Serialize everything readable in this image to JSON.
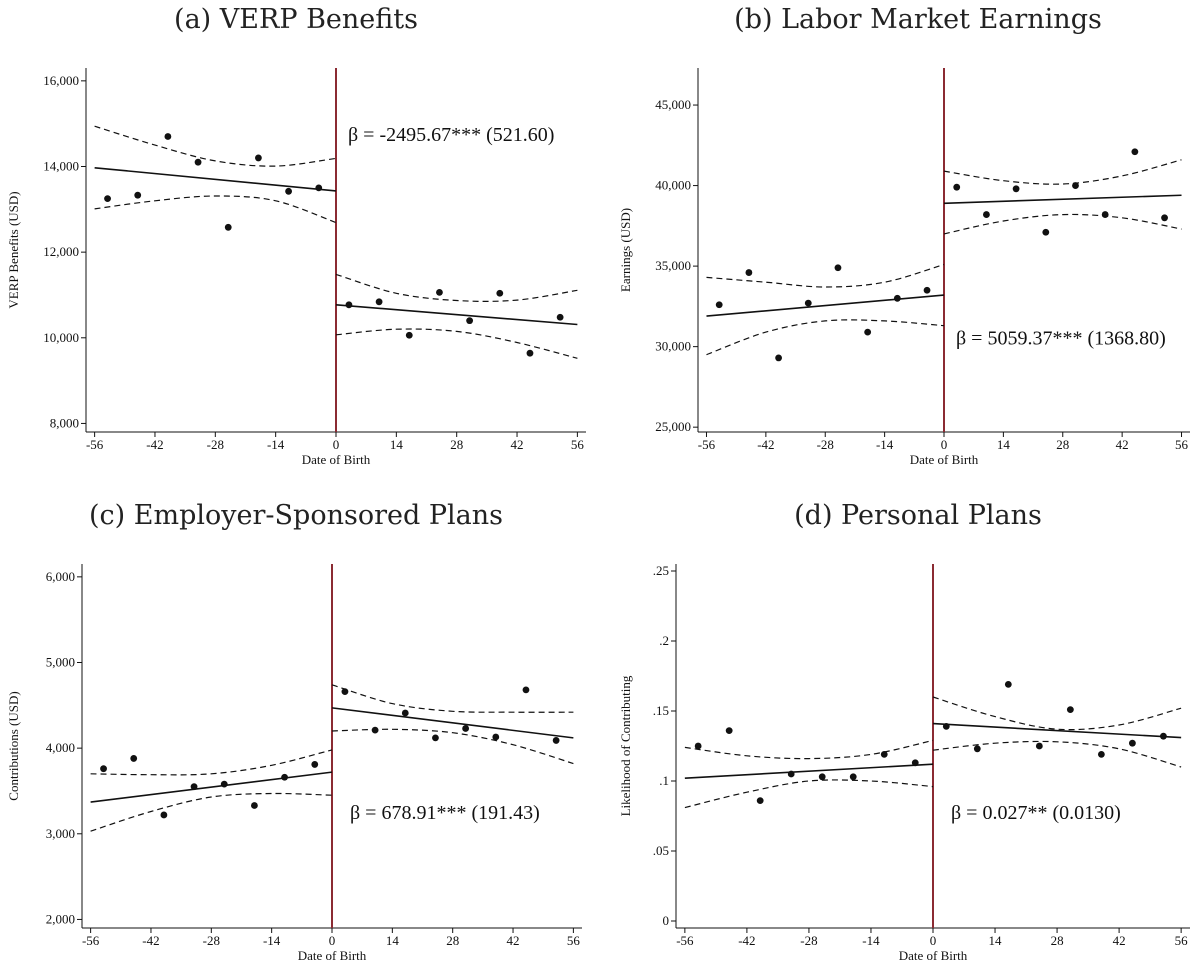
{
  "chart_data": [
    {
      "type": "scatter",
      "title": "(a) VERP Benefits",
      "xlabel": "Date of Birth",
      "ylabel": "VERP Benefits (USD)",
      "xlim": [
        -58,
        58
      ],
      "ylim": [
        7800,
        16300
      ],
      "xticks": [
        -56,
        -42,
        -28,
        -14,
        0,
        14,
        28,
        42,
        56
      ],
      "yticks": [
        8000,
        10000,
        12000,
        14000,
        16000
      ],
      "ytick_labels": [
        "8,000",
        "10,000",
        "12,000",
        "14,000",
        "16,000"
      ],
      "cutoff": 0,
      "annotation": "β = -2495.67*** (521.60)",
      "annotation_pos": "top-right",
      "points": [
        {
          "x": -53,
          "y": 13250
        },
        {
          "x": -46,
          "y": 13330
        },
        {
          "x": -39,
          "y": 14700
        },
        {
          "x": -32,
          "y": 14100
        },
        {
          "x": -25,
          "y": 12580
        },
        {
          "x": -18,
          "y": 14200
        },
        {
          "x": -11,
          "y": 13420
        },
        {
          "x": -4,
          "y": 13500
        },
        {
          "x": 3,
          "y": 10770
        },
        {
          "x": 10,
          "y": 10840
        },
        {
          "x": 17,
          "y": 10060
        },
        {
          "x": 24,
          "y": 11060
        },
        {
          "x": 31,
          "y": 10400
        },
        {
          "x": 38,
          "y": 11040
        },
        {
          "x": 45,
          "y": 9640
        },
        {
          "x": 52,
          "y": 10480
        }
      ],
      "fit_left": {
        "x": [
          -56,
          0
        ],
        "y": [
          13970,
          13430
        ]
      },
      "fit_right": {
        "x": [
          0,
          56
        ],
        "y": [
          10770,
          10310
        ]
      },
      "ci_left": {
        "x": [
          -56,
          -42,
          -28,
          -14,
          0
        ],
        "upper": [
          14940,
          14500,
          14130,
          14010,
          14190
        ],
        "lower": [
          13010,
          13200,
          13310,
          13200,
          12690
        ]
      },
      "ci_right": {
        "x": [
          0,
          14,
          28,
          42,
          56
        ],
        "upper": [
          11480,
          11040,
          10870,
          10880,
          11110
        ],
        "lower": [
          10070,
          10200,
          10150,
          9890,
          9520
        ]
      }
    },
    {
      "type": "scatter",
      "title": "(b) Labor Market Earnings",
      "xlabel": "Date of Birth",
      "ylabel": "Earnings (USD)",
      "xlim": [
        -58,
        58
      ],
      "ylim": [
        24700,
        47300
      ],
      "xticks": [
        -56,
        -42,
        -28,
        -14,
        0,
        14,
        28,
        42,
        56
      ],
      "yticks": [
        25000,
        30000,
        35000,
        40000,
        45000
      ],
      "ytick_labels": [
        "25,000",
        "30,000",
        "35,000",
        "40,000",
        "45,000"
      ],
      "cutoff": 0,
      "annotation": "β = 5059.37*** (1368.80)",
      "annotation_pos": "bottom-right",
      "points": [
        {
          "x": -53,
          "y": 32600
        },
        {
          "x": -46,
          "y": 34600
        },
        {
          "x": -39,
          "y": 29300
        },
        {
          "x": -32,
          "y": 32700
        },
        {
          "x": -25,
          "y": 34900
        },
        {
          "x": -18,
          "y": 30900
        },
        {
          "x": -11,
          "y": 33000
        },
        {
          "x": -4,
          "y": 33500
        },
        {
          "x": 3,
          "y": 39900
        },
        {
          "x": 10,
          "y": 38200
        },
        {
          "x": 17,
          "y": 39800
        },
        {
          "x": 24,
          "y": 37100
        },
        {
          "x": 31,
          "y": 40000
        },
        {
          "x": 38,
          "y": 38200
        },
        {
          "x": 45,
          "y": 42100
        },
        {
          "x": 52,
          "y": 38000
        }
      ],
      "fit_left": {
        "x": [
          -56,
          0
        ],
        "y": [
          31900,
          33200
        ]
      },
      "fit_right": {
        "x": [
          0,
          56
        ],
        "y": [
          38900,
          39400
        ]
      },
      "ci_left": {
        "x": [
          -56,
          -42,
          -28,
          -14,
          0
        ],
        "upper": [
          34300,
          34000,
          33700,
          34000,
          35100
        ],
        "lower": [
          29500,
          30900,
          31600,
          31600,
          31300
        ]
      },
      "ci_right": {
        "x": [
          0,
          14,
          28,
          42,
          56
        ],
        "upper": [
          40900,
          40300,
          40100,
          40600,
          41600
        ],
        "lower": [
          37000,
          37800,
          38200,
          38000,
          37300
        ]
      }
    },
    {
      "type": "scatter",
      "title": "(c) Employer-Sponsored Plans",
      "xlabel": "Date of Birth",
      "ylabel": "Contributions (USD)",
      "xlim": [
        -58,
        58
      ],
      "ylim": [
        1900,
        6150
      ],
      "xticks": [
        -56,
        -42,
        -28,
        -14,
        0,
        14,
        28,
        42,
        56
      ],
      "yticks": [
        2000,
        3000,
        4000,
        5000,
        6000
      ],
      "ytick_labels": [
        "2,000",
        "3,000",
        "4,000",
        "5,000",
        "6,000"
      ],
      "cutoff": 0,
      "annotation": "β = 678.91*** (191.43)",
      "annotation_pos": "middle-right",
      "points": [
        {
          "x": -53,
          "y": 3760
        },
        {
          "x": -46,
          "y": 3880
        },
        {
          "x": -39,
          "y": 3220
        },
        {
          "x": -32,
          "y": 3550
        },
        {
          "x": -25,
          "y": 3580
        },
        {
          "x": -18,
          "y": 3330
        },
        {
          "x": -11,
          "y": 3660
        },
        {
          "x": -4,
          "y": 3810
        },
        {
          "x": 3,
          "y": 4660
        },
        {
          "x": 10,
          "y": 4210
        },
        {
          "x": 17,
          "y": 4410
        },
        {
          "x": 24,
          "y": 4120
        },
        {
          "x": 31,
          "y": 4230
        },
        {
          "x": 38,
          "y": 4130
        },
        {
          "x": 45,
          "y": 4680
        },
        {
          "x": 52,
          "y": 4090
        }
      ],
      "fit_left": {
        "x": [
          -56,
          0
        ],
        "y": [
          3370,
          3720
        ]
      },
      "fit_right": {
        "x": [
          0,
          56
        ],
        "y": [
          4470,
          4120
        ]
      },
      "ci_left": {
        "x": [
          -56,
          -42,
          -28,
          -14,
          0
        ],
        "upper": [
          3700,
          3690,
          3700,
          3800,
          3980
        ],
        "lower": [
          3030,
          3260,
          3430,
          3470,
          3450
        ]
      },
      "ci_right": {
        "x": [
          0,
          14,
          28,
          42,
          56
        ],
        "upper": [
          4740,
          4520,
          4430,
          4420,
          4420
        ],
        "lower": [
          4200,
          4220,
          4180,
          4040,
          3820
        ]
      }
    },
    {
      "type": "scatter",
      "title": "(d) Personal Plans",
      "xlabel": "Date of Birth",
      "ylabel": "Likelihood of Contributing",
      "xlim": [
        -58,
        58
      ],
      "ylim": [
        -0.005,
        0.255
      ],
      "xticks": [
        -56,
        -42,
        -28,
        -14,
        0,
        14,
        28,
        42,
        56
      ],
      "yticks": [
        0,
        0.05,
        0.1,
        0.15,
        0.2,
        0.25
      ],
      "ytick_labels": [
        "0",
        ".05",
        ".1",
        ".15",
        ".2",
        ".25"
      ],
      "cutoff": 0,
      "annotation": "β = 0.027** (0.0130)",
      "annotation_pos": "middle-right",
      "points": [
        {
          "x": -53,
          "y": 0.125
        },
        {
          "x": -46,
          "y": 0.136
        },
        {
          "x": -39,
          "y": 0.086
        },
        {
          "x": -32,
          "y": 0.105
        },
        {
          "x": -25,
          "y": 0.103
        },
        {
          "x": -18,
          "y": 0.103
        },
        {
          "x": -11,
          "y": 0.119
        },
        {
          "x": -4,
          "y": 0.113
        },
        {
          "x": 3,
          "y": 0.139
        },
        {
          "x": 10,
          "y": 0.123
        },
        {
          "x": 17,
          "y": 0.169
        },
        {
          "x": 24,
          "y": 0.125
        },
        {
          "x": 31,
          "y": 0.151
        },
        {
          "x": 38,
          "y": 0.119
        },
        {
          "x": 45,
          "y": 0.127
        },
        {
          "x": 52,
          "y": 0.132
        }
      ],
      "fit_left": {
        "x": [
          -56,
          0
        ],
        "y": [
          0.102,
          0.112
        ]
      },
      "fit_right": {
        "x": [
          0,
          56
        ],
        "y": [
          0.141,
          0.131
        ]
      },
      "ci_left": {
        "x": [
          -56,
          -42,
          -28,
          -14,
          0
        ],
        "upper": [
          0.124,
          0.118,
          0.116,
          0.119,
          0.129
        ],
        "lower": [
          0.081,
          0.092,
          0.1,
          0.1,
          0.096
        ]
      },
      "ci_right": {
        "x": [
          0,
          14,
          28,
          42,
          56
        ],
        "upper": [
          0.16,
          0.146,
          0.137,
          0.14,
          0.152
        ],
        "lower": [
          0.122,
          0.127,
          0.128,
          0.123,
          0.11
        ]
      }
    }
  ],
  "colors": {
    "cutoff_line": "#8b2b33",
    "points": "#111111",
    "fit": "#111111",
    "axis": "#111111"
  }
}
